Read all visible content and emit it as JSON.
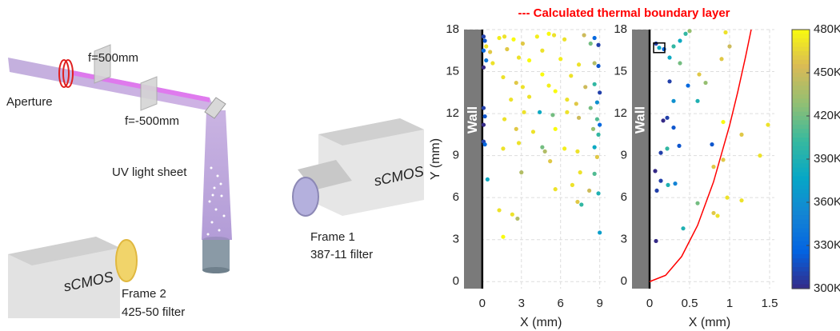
{
  "diagram": {
    "aperture": "Aperture",
    "lens1": "f=500mm",
    "lens2": "f=-500mm",
    "light_sheet": "UV light sheet",
    "camera1": "sCMOS",
    "frame1": "Frame 1",
    "filter1": "387-11 filter",
    "camera2": "sCMOS",
    "frame2": "Frame 2",
    "filter2": "425-50 filter"
  },
  "chart_data": [
    {
      "type": "scatter",
      "xlabel": "X (mm)",
      "ylabel": "Y (mm)",
      "wall_label": "Wall",
      "grid": true,
      "xlim": [
        -1.4,
        9.45
      ],
      "ylim": [
        -0.5,
        18
      ],
      "xticks": [
        0,
        3,
        6,
        9
      ],
      "yticks": [
        0,
        3,
        6,
        9,
        12,
        15,
        18
      ],
      "series": [
        {
          "x": [
            0.1,
            0.2,
            0.1,
            0.3,
            0.1,
            0.1,
            0.2,
            0.1,
            0.1,
            0.2,
            0.3,
            0.6,
            1.3,
            1.7,
            2.4,
            3.1,
            4.2,
            5.1,
            5.5,
            6.3,
            7.8,
            8.3,
            8.6,
            8.9,
            0.8,
            1.9,
            2.8,
            3.6,
            4.6,
            6.0,
            7.4,
            8.6,
            8.9,
            1.6,
            2.6,
            3.1,
            4.6,
            5.1,
            6.8,
            7.9,
            8.6,
            9.0,
            2.2,
            3.6,
            5.6,
            6.5,
            7.2,
            8.3,
            8.8,
            1.7,
            3.2,
            4.4,
            5.4,
            6.5,
            7.4,
            8.8,
            9.0,
            2.6,
            3.9,
            5.6,
            8.5,
            8.9,
            1.6,
            2.8,
            4.6,
            6.3,
            7.3,
            8.6,
            5.2,
            4.8,
            8.8,
            3.0,
            7.5,
            8.6,
            5.6,
            6.9,
            8.2,
            8.9,
            7.6,
            7.3,
            1.3,
            2.3,
            2.7,
            1.6,
            9.0,
            0.4
          ],
          "y": [
            17.5,
            17.2,
            16.5,
            15.8,
            15.3,
            12.4,
            11.8,
            11.2,
            10.0,
            9.8,
            16.8,
            16.4,
            17.4,
            17.5,
            17.3,
            17.0,
            17.5,
            17.7,
            17.6,
            17.3,
            17.6,
            17.0,
            17.4,
            16.9,
            15.6,
            16.6,
            16.0,
            15.8,
            16.5,
            15.9,
            15.5,
            15.6,
            15.4,
            14.6,
            14.2,
            13.9,
            14.8,
            14.0,
            14.7,
            13.9,
            14.1,
            13.5,
            13.0,
            13.2,
            13.6,
            13.0,
            12.7,
            12.4,
            12.8,
            11.6,
            12.1,
            12.1,
            11.9,
            12.1,
            11.7,
            11.6,
            11.2,
            10.9,
            10.7,
            10.9,
            10.9,
            10.5,
            9.5,
            9.9,
            9.6,
            9.5,
            9.3,
            9.6,
            8.6,
            9.3,
            8.9,
            7.8,
            7.8,
            7.7,
            6.6,
            6.9,
            6.5,
            6.3,
            5.5,
            5.7,
            5.1,
            4.8,
            4.5,
            3.2,
            3.5,
            7.3
          ],
          "c": [
            310,
            320,
            330,
            340,
            300,
            310,
            320,
            300,
            310,
            330,
            470,
            460,
            475,
            470,
            480,
            460,
            475,
            480,
            470,
            470,
            450,
            420,
            330,
            310,
            470,
            460,
            470,
            480,
            470,
            475,
            470,
            440,
            320,
            470,
            460,
            470,
            480,
            475,
            470,
            450,
            400,
            310,
            470,
            470,
            480,
            470,
            460,
            420,
            360,
            470,
            470,
            380,
            420,
            470,
            450,
            410,
            330,
            460,
            470,
            480,
            430,
            400,
            470,
            470,
            420,
            475,
            470,
            380,
            460,
            440,
            460,
            440,
            470,
            410,
            470,
            470,
            450,
            390,
            400,
            460,
            470,
            470,
            440,
            480,
            370,
            380
          ]
        }
      ]
    },
    {
      "type": "scatter",
      "xlabel": "X (mm)",
      "wall_label": "Wall",
      "grid": true,
      "annotation": "--- Calculated thermal boundary layer",
      "annotation_color": "#ff0000",
      "xlim": [
        -0.22,
        1.56
      ],
      "ylim": [
        -0.5,
        18
      ],
      "xticks": [
        0,
        0.5,
        1,
        1.5
      ],
      "yticks": [
        0,
        3,
        6,
        9,
        12,
        15,
        18
      ],
      "series": [
        {
          "x": [
            0.08,
            0.12,
            0.18,
            0.3,
            0.38,
            0.45,
            0.95,
            0.25,
            0.38,
            0.9,
            1.0,
            0.62,
            0.7,
            0.25,
            0.48,
            0.3,
            0.6,
            0.17,
            0.22,
            0.3,
            0.92,
            1.15,
            1.48,
            0.22,
            0.37,
            0.14,
            0.78,
            1.38,
            0.92,
            0.8,
            0.07,
            0.14,
            0.23,
            0.09,
            0.32,
            0.97,
            0.6,
            0.8,
            0.85,
            1.15,
            0.08,
            0.42,
            0.5
          ],
          "y": [
            17.0,
            16.7,
            16.6,
            16.8,
            17.2,
            17.7,
            17.8,
            16.0,
            15.6,
            15.9,
            16.8,
            14.8,
            14.2,
            14.3,
            14.0,
            12.9,
            12.9,
            11.5,
            11.7,
            11.0,
            11.4,
            10.5,
            11.2,
            9.5,
            9.7,
            9.2,
            9.8,
            9.0,
            8.7,
            8.2,
            7.9,
            7.2,
            6.9,
            6.5,
            7.0,
            6.0,
            5.6,
            4.9,
            4.7,
            5.8,
            2.9,
            3.8,
            17.9
          ],
          "c": [
            310,
            380,
            330,
            400,
            380,
            400,
            470,
            380,
            420,
            460,
            450,
            460,
            430,
            310,
            330,
            360,
            390,
            300,
            310,
            320,
            480,
            460,
            470,
            400,
            320,
            310,
            320,
            470,
            460,
            460,
            300,
            310,
            390,
            310,
            350,
            470,
            420,
            460,
            470,
            470,
            300,
            390,
            430
          ]
        },
        {
          "type": "line",
          "color": "#ff0000",
          "x": [
            0,
            0.2,
            0.4,
            0.6,
            0.8,
            1.0,
            1.1,
            1.2,
            1.27
          ],
          "y": [
            0,
            0.45,
            1.79,
            4.02,
            7.14,
            11.16,
            13.5,
            16.07,
            18
          ]
        }
      ]
    },
    {
      "type": "colorbar",
      "clim": [
        300,
        480
      ],
      "ticks": [
        {
          "value": 300,
          "label": "300K"
        },
        {
          "value": 330,
          "label": "330K"
        },
        {
          "value": 360,
          "label": "360K"
        },
        {
          "value": 390,
          "label": "390K"
        },
        {
          "value": 420,
          "label": "420K"
        },
        {
          "value": 450,
          "label": "450K"
        },
        {
          "value": 480,
          "label": "480K"
        }
      ]
    }
  ]
}
